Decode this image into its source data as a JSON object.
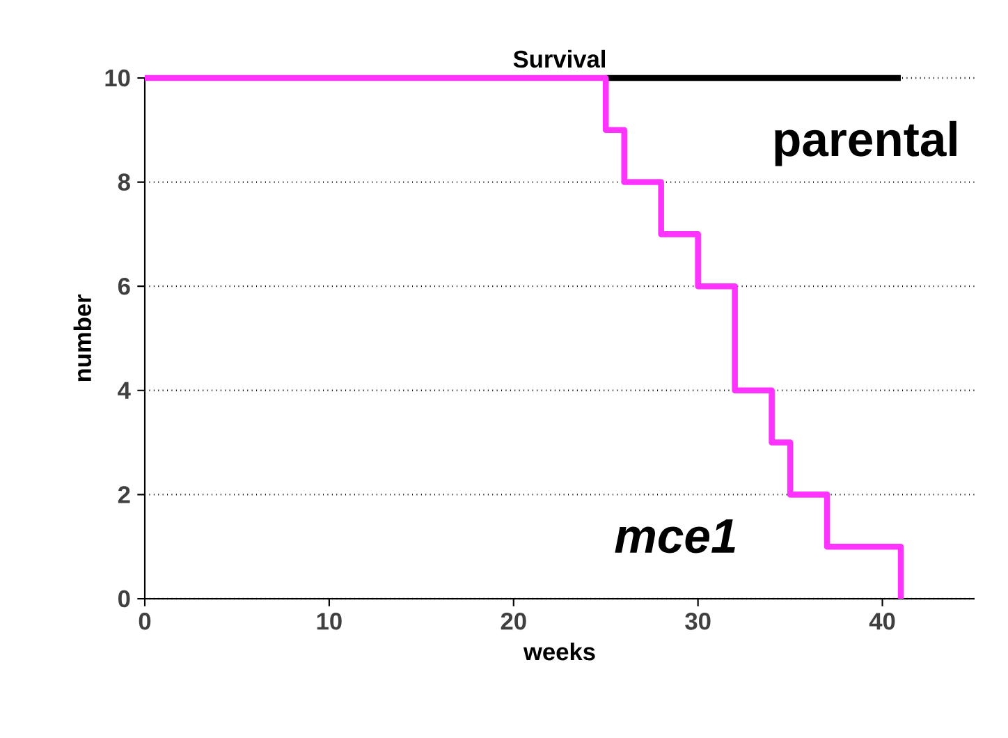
{
  "chart_data": {
    "type": "step",
    "title": "Survival",
    "xlabel": "weeks",
    "ylabel": "number",
    "xlim": [
      0,
      45
    ],
    "ylim": [
      0,
      10
    ],
    "xticks": [
      0,
      10,
      20,
      30,
      40
    ],
    "yticks": [
      0,
      2,
      4,
      6,
      8,
      10
    ],
    "grid": "y",
    "legend": false,
    "line_style": "solid",
    "marker": "none",
    "series": [
      {
        "name": "parental",
        "color": "#000000",
        "x": [
          25,
          41
        ],
        "values": [
          10,
          10
        ]
      },
      {
        "name": "mce1",
        "color": "#ff33ff",
        "x": [
          0,
          25,
          26,
          28,
          30,
          32,
          34,
          35,
          37,
          41
        ],
        "values": [
          10,
          9,
          8,
          7,
          6,
          4,
          3,
          2,
          1,
          0
        ]
      }
    ]
  }
}
